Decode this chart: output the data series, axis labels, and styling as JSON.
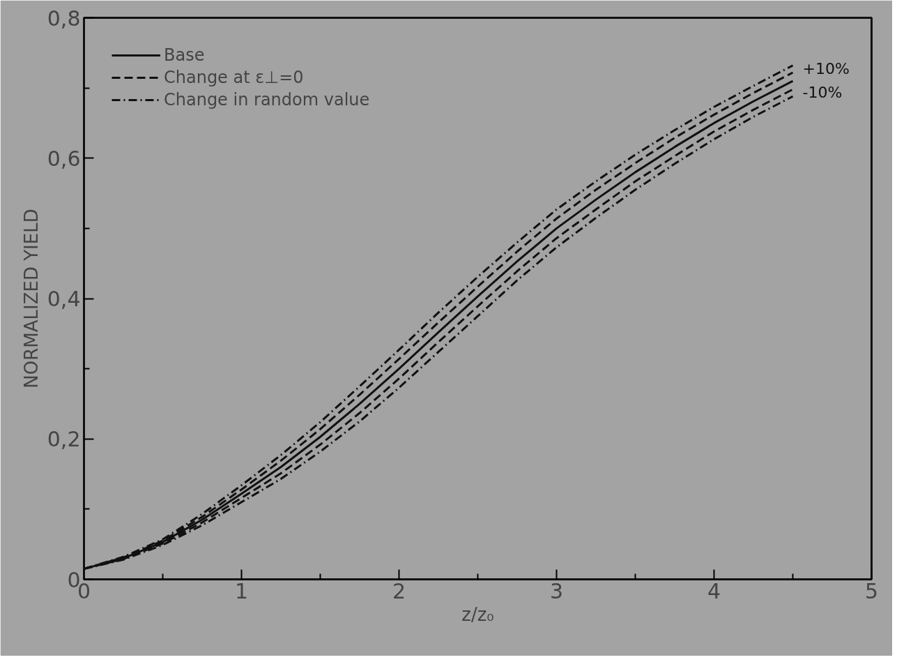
{
  "chart_data": {
    "type": "line",
    "xlabel": "z/z₀",
    "ylabel": "NORMALIZED YIELD",
    "x": [
      0,
      0.25,
      0.5,
      0.75,
      1,
      1.25,
      1.5,
      1.75,
      2,
      2.25,
      2.5,
      2.75,
      3,
      3.25,
      3.5,
      3.75,
      4,
      4.25,
      4.5
    ],
    "xlim": [
      0,
      5
    ],
    "ylim": [
      0,
      0.8
    ],
    "xticks": [
      0,
      {
        "value": 0.5,
        "label": null
      },
      1,
      {
        "value": 1.5,
        "label": null
      },
      2,
      {
        "value": 2.5,
        "label": null
      },
      3,
      {
        "value": 3.5,
        "label": null
      },
      4,
      {
        "value": 4.5,
        "label": null
      },
      5
    ],
    "yticks": [
      0,
      {
        "value": 0.1,
        "label": null
      },
      {
        "value": 0.2,
        "label": "0,2"
      },
      {
        "value": 0.3,
        "label": null
      },
      {
        "value": 0.4,
        "label": "0,4"
      },
      {
        "value": 0.5,
        "label": null
      },
      {
        "value": 0.6,
        "label": "0,6"
      },
      {
        "value": 0.7,
        "label": null
      },
      {
        "value": 0.8,
        "label": "0,8"
      }
    ],
    "grid": false,
    "legend": "top left",
    "series": [
      {
        "name": "Base",
        "color": "#111111",
        "line_style": "solid",
        "values": [
          0.015,
          0.03,
          0.053,
          0.085,
          0.122,
          0.16,
          0.203,
          0.25,
          0.3,
          0.352,
          0.403,
          0.453,
          0.5,
          0.541,
          0.58,
          0.616,
          0.65,
          0.681,
          0.71
        ]
      },
      {
        "name": "Change at ε⊥=0",
        "color": "#111111",
        "line_style": "dashed",
        "values": [
          0.015,
          0.031,
          0.055,
          0.089,
          0.128,
          0.169,
          0.214,
          0.263,
          0.314,
          0.366,
          0.417,
          0.467,
          0.514,
          0.555,
          0.593,
          0.629,
          0.662,
          0.693,
          0.722
        ]
      },
      {
        "color": "#111111",
        "line_style": "dashed",
        "values": [
          0.015,
          0.029,
          0.051,
          0.081,
          0.116,
          0.151,
          0.192,
          0.237,
          0.286,
          0.338,
          0.389,
          0.439,
          0.486,
          0.527,
          0.567,
          0.603,
          0.638,
          0.669,
          0.698
        ]
      },
      {
        "name": "Change in random value",
        "color": "#111111",
        "line_style": "dashdot",
        "values": [
          0.015,
          0.032,
          0.057,
          0.093,
          0.134,
          0.177,
          0.224,
          0.275,
          0.327,
          0.38,
          0.431,
          0.48,
          0.527,
          0.567,
          0.605,
          0.64,
          0.673,
          0.703,
          0.732
        ]
      },
      {
        "color": "#111111",
        "line_style": "dashdot",
        "values": [
          0.015,
          0.028,
          0.049,
          0.077,
          0.11,
          0.143,
          0.182,
          0.225,
          0.273,
          0.324,
          0.375,
          0.426,
          0.473,
          0.515,
          0.555,
          0.592,
          0.627,
          0.659,
          0.688
        ]
      }
    ],
    "annotations": [
      {
        "text": "+10%",
        "x": 4.5,
        "y": 0.727
      },
      {
        "text": "-10%",
        "x": 4.5,
        "y": 0.693
      }
    ]
  }
}
